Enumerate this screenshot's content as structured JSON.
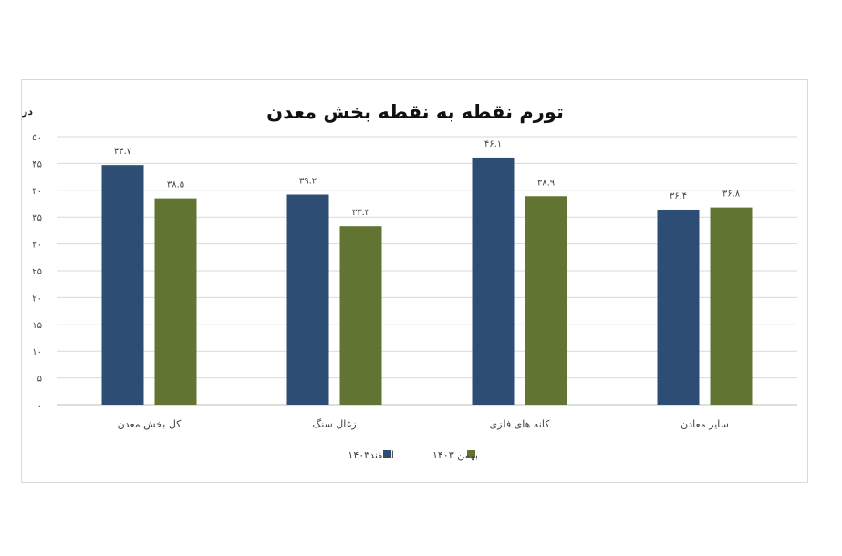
{
  "chart_data": {
    "type": "bar",
    "title": "تورم نقطه به نقطه بخش معدن",
    "ylabel": "درصد",
    "xlabel": "",
    "ylim": [
      0,
      50
    ],
    "ytick_values": [
      0,
      5,
      10,
      15,
      20,
      25,
      30,
      35,
      40,
      45,
      50
    ],
    "ytick_labels": [
      "۰",
      "۵",
      "۱۰",
      "۱۵",
      "۲۰",
      "۲۵",
      "۳۰",
      "۳۵",
      "۴۰",
      "۴۵",
      "۵۰"
    ],
    "grid": true,
    "legend_position": "bottom",
    "categories": [
      "کل بخش معدن",
      "زغال سنگ",
      "کانه های فلزی",
      "سایر معادن"
    ],
    "series": [
      {
        "name": "اسفند۱۴۰۳",
        "color": "#2e4d75",
        "values": [
          44.7,
          39.2,
          46.1,
          36.4
        ],
        "labels": [
          "۴۴.۷",
          "۳۹.۲",
          "۴۶.۱",
          "۳۶.۴"
        ]
      },
      {
        "name": "بهمن ۱۴۰۳",
        "color": "#627431",
        "values": [
          38.5,
          33.3,
          38.9,
          36.8
        ],
        "labels": [
          "۳۸.۵",
          "۳۳.۳",
          "۳۸.۹",
          "۳۶.۸"
        ]
      }
    ]
  }
}
